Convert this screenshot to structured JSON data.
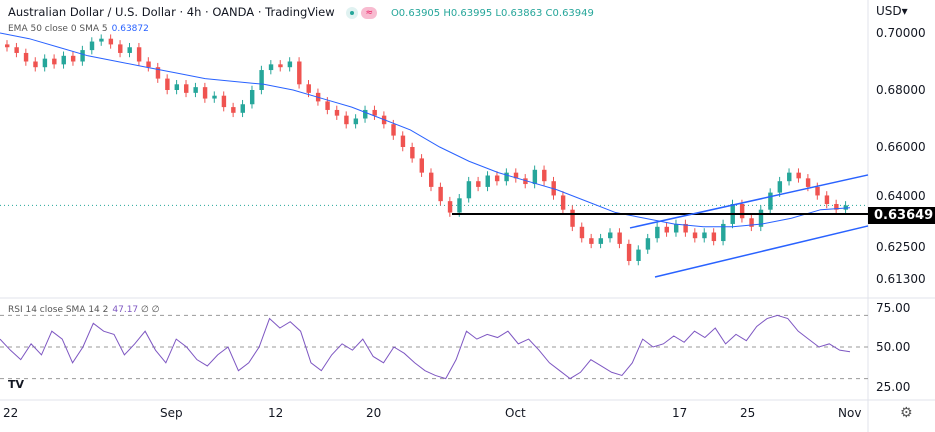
{
  "header": {
    "title": "Australian Dollar / U.S. Dollar · 4h · OANDA · TradingView",
    "open": "O0.63905",
    "high": "H0.63995",
    "low": "L0.63863",
    "close": "C0.63949",
    "currency": "USD▾"
  },
  "indicators": {
    "ema": "EMA 50 close 0 SMA 5",
    "ema_value": "0.63872",
    "rsi": "RSI 14 close SMA 14 2",
    "rsi_value": "47.17",
    "rsi_extra": "∅ ∅"
  },
  "colors": {
    "up": "#26a69a",
    "down": "#ef5350",
    "ema": "#2962ff",
    "channel": "#2962ff",
    "support": "#000000",
    "rsi": "#7e57c2"
  },
  "chart_data": [
    {
      "type": "candlestick",
      "ylim": [
        0.613,
        0.704
      ],
      "y_ticks": [
        "0.70000",
        "0.68000",
        "0.66000",
        "0.64000",
        "0.62500",
        "0.61300"
      ],
      "x_ticks": [
        "22",
        "Sep",
        "12",
        "20",
        "Oct",
        "17",
        "25",
        "Nov"
      ],
      "closes": [
        0.695,
        0.693,
        0.69,
        0.688,
        0.691,
        0.689,
        0.692,
        0.69,
        0.694,
        0.697,
        0.698,
        0.696,
        0.693,
        0.695,
        0.69,
        0.688,
        0.684,
        0.68,
        0.682,
        0.679,
        0.681,
        0.677,
        0.678,
        0.674,
        0.672,
        0.675,
        0.68,
        0.687,
        0.689,
        0.688,
        0.69,
        0.682,
        0.679,
        0.676,
        0.673,
        0.671,
        0.668,
        0.67,
        0.673,
        0.671,
        0.668,
        0.664,
        0.66,
        0.656,
        0.651,
        0.646,
        0.641,
        0.637,
        0.642,
        0.648,
        0.646,
        0.65,
        0.648,
        0.651,
        0.649,
        0.647,
        0.652,
        0.648,
        0.643,
        0.638,
        0.632,
        0.628,
        0.626,
        0.628,
        0.63,
        0.626,
        0.62,
        0.624,
        0.628,
        0.632,
        0.63,
        0.633,
        0.63,
        0.628,
        0.63,
        0.627,
        0.633,
        0.64,
        0.635,
        0.632,
        0.638,
        0.644,
        0.648,
        0.651,
        0.649,
        0.646,
        0.643,
        0.64,
        0.638,
        0.6395
      ],
      "ema50": [
        0.7,
        0.698,
        0.695,
        0.692,
        0.69,
        0.688,
        0.686,
        0.684,
        0.683,
        0.682,
        0.68,
        0.677,
        0.674,
        0.67,
        0.666,
        0.66,
        0.655,
        0.651,
        0.648,
        0.645,
        0.641,
        0.637,
        0.635,
        0.633,
        0.632,
        0.632,
        0.633,
        0.635,
        0.638,
        0.6387
      ],
      "support_level": 0.63649,
      "channel_upper": [
        0.6316,
        0.6502
      ],
      "channel_lower": [
        0.6144,
        0.6323
      ]
    },
    {
      "type": "line",
      "name": "RSI",
      "ylim": [
        20,
        80
      ],
      "levels": [
        70,
        50,
        30
      ],
      "y_ticks": [
        "75.00",
        "50.00",
        "25.00"
      ],
      "values": [
        55,
        48,
        42,
        52,
        45,
        60,
        55,
        40,
        50,
        65,
        60,
        58,
        45,
        52,
        60,
        48,
        40,
        55,
        50,
        42,
        38,
        45,
        50,
        35,
        40,
        50,
        68,
        62,
        66,
        60,
        40,
        35,
        45,
        52,
        48,
        55,
        44,
        40,
        50,
        46,
        40,
        35,
        32,
        30,
        42,
        60,
        55,
        58,
        56,
        60,
        52,
        55,
        48,
        40,
        35,
        30,
        34,
        42,
        38,
        34,
        32,
        40,
        55,
        50,
        52,
        57,
        53,
        60,
        56,
        62,
        52,
        58,
        54,
        63,
        68,
        70,
        68,
        60,
        55,
        50,
        52,
        48,
        47
      ]
    }
  ]
}
